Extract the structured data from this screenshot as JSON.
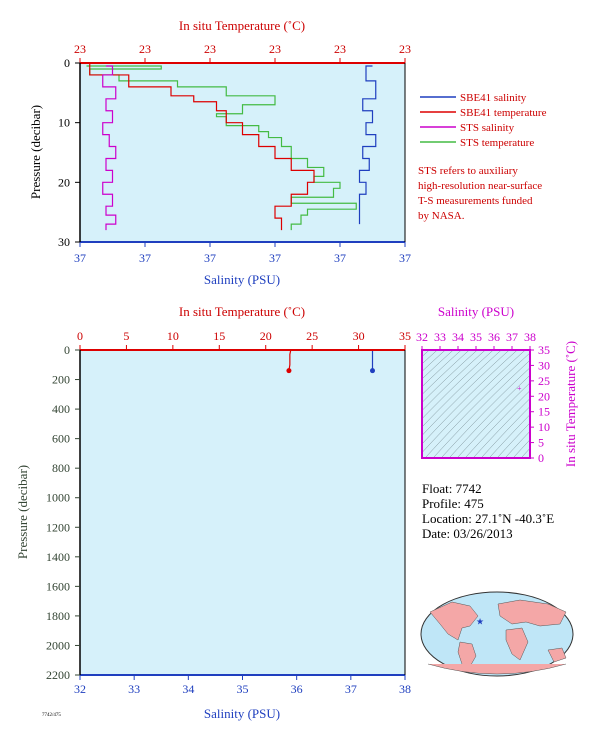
{
  "chart_data": [
    {
      "type": "line",
      "top_xlabel": "In situ Temperature (˚C)",
      "top_tick_labels": [
        "23",
        "23",
        "23",
        "23",
        "23",
        "23"
      ],
      "xlabel": "Salinity (PSU)",
      "bottom_tick_labels": [
        "37",
        "37",
        "37",
        "37",
        "37",
        "37"
      ],
      "ylabel": "Pressure (decibar)",
      "ylim": [
        0,
        30
      ],
      "y_ticks": [
        0,
        10,
        20,
        30
      ],
      "legend": [
        {
          "name": "SBE41 salinity",
          "color": "#1f3fbf"
        },
        {
          "name": "SBE41 temperature",
          "color": "#dd0000"
        },
        {
          "name": "STS salinity",
          "color": "#cc00cc"
        },
        {
          "name": "STS temperature",
          "color": "#44bb44"
        }
      ],
      "series": [
        {
          "name": "STS temperature",
          "x_fraction": [
            0.02,
            0.25,
            0.03,
            0.12,
            0.3,
            0.45,
            0.6,
            0.5,
            0.42,
            0.45,
            0.55,
            0.58,
            0.62,
            0.65,
            0.7,
            0.75,
            0.72,
            0.8,
            0.78,
            0.65,
            0.85,
            0.7,
            0.68,
            0.65
          ],
          "pressure": [
            0.5,
            1,
            2,
            3,
            4,
            5.5,
            7,
            8.5,
            9,
            10.5,
            11.5,
            12.5,
            14,
            16,
            17.5,
            19,
            20,
            21,
            22.5,
            23.5,
            24.5,
            25.5,
            27,
            28
          ]
        },
        {
          "name": "SBE41 temperature",
          "x_fraction": [
            0.01,
            0.03,
            0.15,
            0.28,
            0.35,
            0.42,
            0.45,
            0.5,
            0.55,
            0.6,
            0.65,
            0.72,
            0.7,
            0.65,
            0.6,
            0.62
          ],
          "pressure": [
            0,
            2,
            4,
            5.5,
            6.5,
            8,
            10,
            12,
            14,
            16,
            18,
            20,
            22,
            24,
            26,
            28
          ]
        },
        {
          "name": "STS salinity",
          "x_fraction": [
            0.08,
            0.1,
            0.07,
            0.11,
            0.08,
            0.1,
            0.07,
            0.09,
            0.11,
            0.08,
            0.1,
            0.07,
            0.1,
            0.08,
            0.11,
            0.08
          ],
          "pressure": [
            0.5,
            2,
            4,
            6,
            8,
            10,
            12,
            14,
            16,
            18,
            20,
            22,
            24,
            25.5,
            27,
            28
          ]
        },
        {
          "name": "SBE41 salinity",
          "x_fraction": [
            0.9,
            0.88,
            0.91,
            0.87,
            0.9,
            0.88,
            0.91,
            0.87,
            0.89,
            0.86,
            0.88,
            0.86
          ],
          "pressure": [
            0.5,
            3,
            6,
            8,
            10,
            12,
            14,
            16,
            18,
            20,
            22,
            27
          ]
        }
      ],
      "note": [
        "STS refers to auxiliary",
        "high-resolution near-surface",
        "T-S measurements funded",
        "by NASA."
      ]
    },
    {
      "type": "line",
      "top_xlabel": "In situ Temperature (˚C)",
      "top_ticks": [
        0,
        5,
        10,
        15,
        20,
        25,
        30,
        35
      ],
      "xlabel": "Salinity (PSU)",
      "bottom_ticks": [
        32,
        33,
        34,
        35,
        36,
        37,
        38
      ],
      "ylabel": "Pressure (decibar)",
      "ylim": [
        0,
        2200
      ],
      "y_ticks": [
        0,
        200,
        400,
        600,
        800,
        1000,
        1200,
        1400,
        1600,
        1800,
        2000,
        2200
      ],
      "series": [
        {
          "name": "temperature",
          "temp": [
            22.7,
            22.6,
            22.6,
            22.5
          ],
          "pressure": [
            0,
            30,
            100,
            140
          ]
        },
        {
          "name": "salinity",
          "salinity": [
            37.4,
            37.4,
            37.4,
            37.4
          ],
          "pressure": [
            0,
            30,
            100,
            140
          ]
        }
      ]
    },
    {
      "type": "scatter",
      "xlabel": "Salinity (PSU)",
      "x_ticks": [
        32,
        33,
        34,
        35,
        36,
        37,
        38
      ],
      "ylabel": "In situ Temperature (˚C)",
      "y_ticks": [
        0,
        5,
        10,
        15,
        20,
        25,
        30,
        35
      ],
      "points": [
        {
          "x": 37.4,
          "y": 22.7
        }
      ]
    }
  ],
  "info": {
    "float": "Float:  7742",
    "profile": "Profile:  475",
    "location": "Location:  27.1˚N  -40.3˚E",
    "date": "Date:  03/26/2013"
  },
  "map": {
    "marker_lat": 27.1,
    "marker_lon": -40.3
  },
  "footer_tiny": "7742/475"
}
